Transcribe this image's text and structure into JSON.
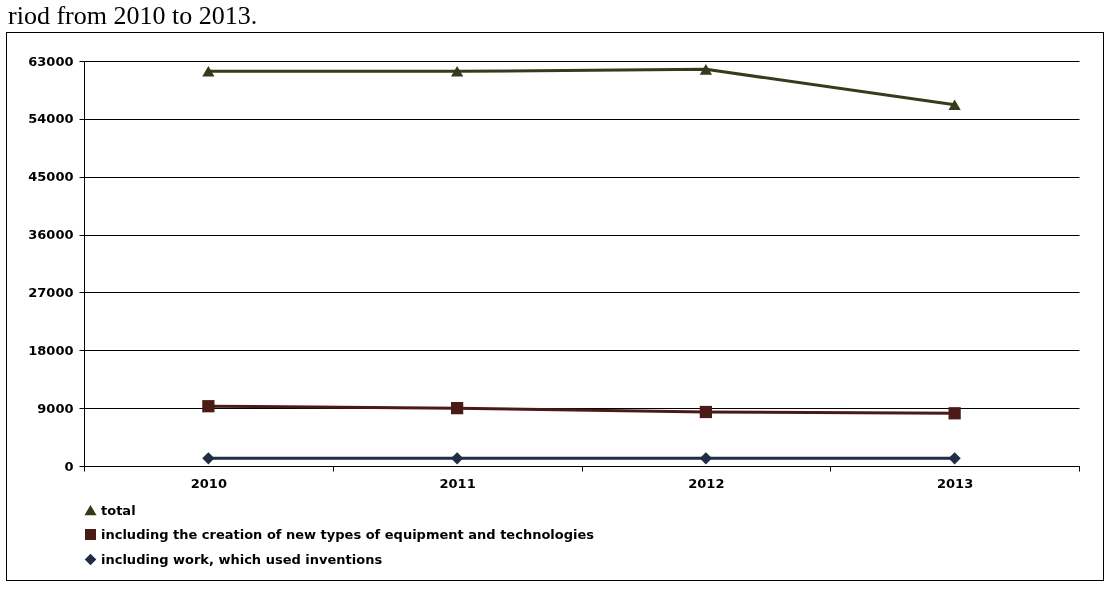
{
  "chart_data": {
    "type": "line",
    "title": "riod from 2010 to 2013.",
    "categories": [
      "2010",
      "2011",
      "2012",
      "2013"
    ],
    "series": [
      {
        "name": "total",
        "color": "#333d1b",
        "values": [
          61400,
          61400,
          61700,
          56200
        ],
        "marker": "triangle"
      },
      {
        "name": "including the creation of new types of equipment and technologies",
        "color": "#4a1a16",
        "values": [
          9300,
          9000,
          8400,
          8200
        ],
        "marker": "square"
      },
      {
        "name": "including work, which used inventions",
        "color": "#1f2e44",
        "values": [
          1200,
          1200,
          1200,
          1200
        ],
        "marker": "diamond"
      }
    ],
    "ylim": [
      0,
      63000
    ],
    "yticks": [
      0,
      9000,
      18000,
      27000,
      36000,
      45000,
      54000,
      63000
    ],
    "grid": "y",
    "legend": "bottom left"
  }
}
